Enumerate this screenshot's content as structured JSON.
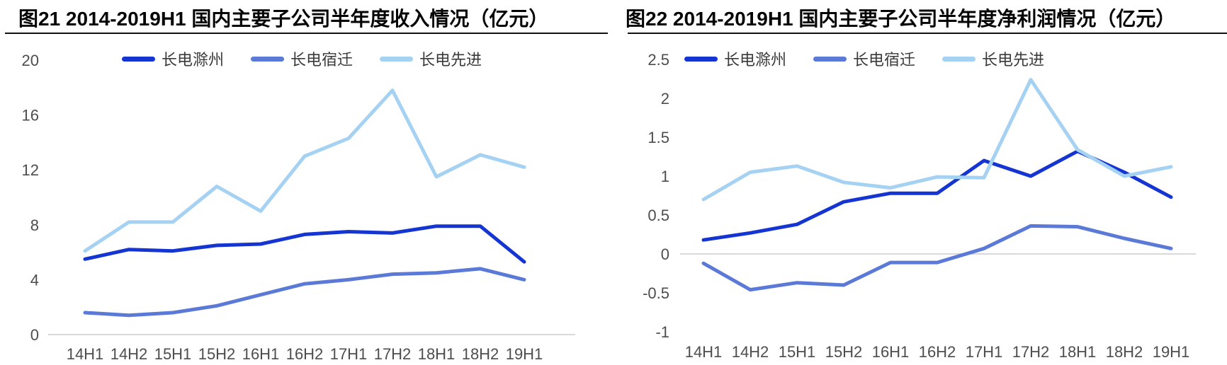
{
  "styles": {
    "background": "#ffffff",
    "title_color": "#050505",
    "axis_label_color": "#4d4d4d",
    "zero_line_color": "#d9d9d9",
    "legend_text_color": "#3a3a3a",
    "series_colors": [
      "#1535d3",
      "#5b79d6",
      "#a5d2f2"
    ]
  },
  "chart_data": [
    {
      "type": "line",
      "title": "图21 2014-2019H1 国内主要子公司半年度收入情况（亿元）",
      "xlabel": "",
      "ylabel": "",
      "legend_position": "top",
      "grid": "zero-line-only",
      "categories": [
        "14H1",
        "14H2",
        "15H1",
        "15H2",
        "16H1",
        "16H2",
        "17H1",
        "17H2",
        "18H1",
        "18H2",
        "19H1"
      ],
      "ylim": [
        0,
        20
      ],
      "yticks": [
        0,
        4,
        8,
        12,
        16,
        20
      ],
      "series": [
        {
          "name": "长电滁州",
          "color": "#1535d3",
          "values": [
            5.5,
            6.2,
            6.1,
            6.5,
            6.6,
            7.3,
            7.5,
            7.4,
            7.9,
            7.9,
            5.3
          ]
        },
        {
          "name": "长电宿迁",
          "color": "#5b79d6",
          "values": [
            1.6,
            1.4,
            1.6,
            2.1,
            2.9,
            3.7,
            4.0,
            4.4,
            4.5,
            4.8,
            4.0
          ]
        },
        {
          "name": "长电先进",
          "color": "#a5d2f2",
          "values": [
            6.1,
            8.2,
            8.2,
            10.8,
            9.0,
            13.0,
            14.3,
            17.8,
            11.5,
            13.1,
            12.2
          ]
        }
      ]
    },
    {
      "type": "line",
      "title": "图22 2014-2019H1 国内主要子公司半年度净利润情况（亿元）",
      "xlabel": "",
      "ylabel": "",
      "legend_position": "top",
      "grid": "zero-line-only",
      "categories": [
        "14H1",
        "14H2",
        "15H1",
        "15H2",
        "16H1",
        "16H2",
        "17H1",
        "17H2",
        "18H1",
        "18H2",
        "19H1"
      ],
      "ylim": [
        -1,
        2.5
      ],
      "yticks": [
        -1,
        -0.5,
        0,
        0.5,
        1,
        1.5,
        2,
        2.5
      ],
      "series": [
        {
          "name": "长电滁州",
          "color": "#1535d3",
          "values": [
            0.18,
            0.27,
            0.38,
            0.67,
            0.78,
            0.78,
            1.2,
            1.0,
            1.32,
            1.05,
            0.73
          ]
        },
        {
          "name": "长电宿迁",
          "color": "#5b79d6",
          "values": [
            -0.12,
            -0.46,
            -0.37,
            -0.4,
            -0.11,
            -0.11,
            0.07,
            0.36,
            0.35,
            0.2,
            0.07
          ]
        },
        {
          "name": "长电先进",
          "color": "#a5d2f2",
          "values": [
            0.7,
            1.05,
            1.13,
            0.92,
            0.85,
            0.99,
            0.98,
            2.24,
            1.34,
            1.0,
            1.12
          ]
        }
      ]
    }
  ]
}
